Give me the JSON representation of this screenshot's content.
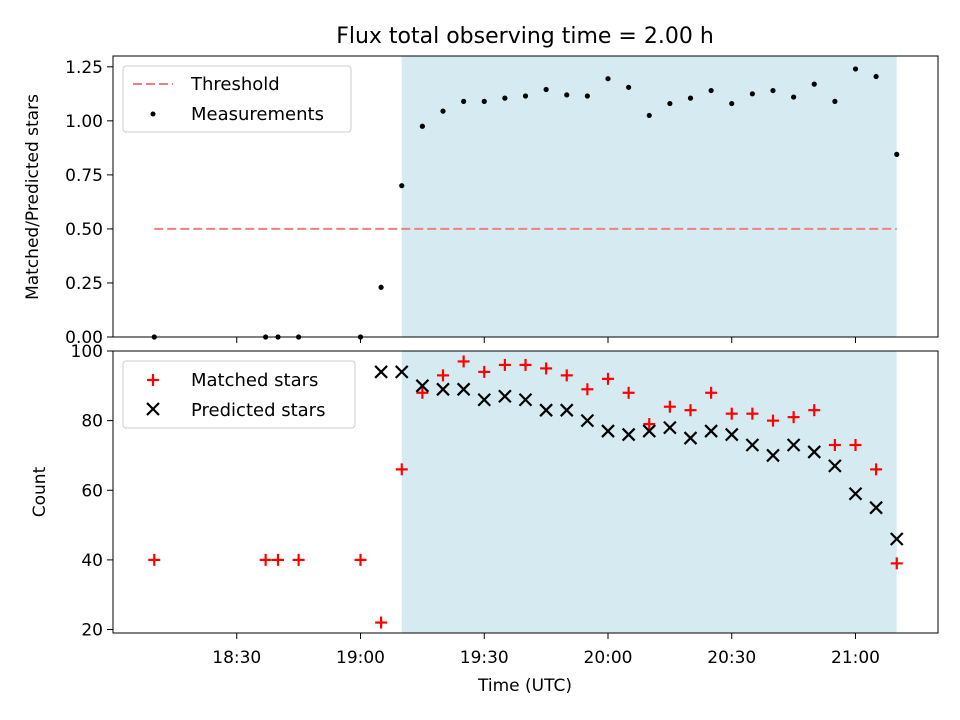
{
  "chart_data": [
    {
      "type": "scatter",
      "title": "Flux total observing time = 2.00 h",
      "ylabel": "Matched/Predicted stars",
      "xlabel": "",
      "xlim": [
        "18:00",
        "21:20"
      ],
      "ylim": [
        0,
        1.3
      ],
      "yticks": [
        "0.00",
        "0.25",
        "0.50",
        "0.75",
        "1.00",
        "1.25"
      ],
      "legend_position": "upper-left",
      "shaded_span": [
        "19:10",
        "21:10"
      ],
      "shade_color": "#d3eaf0",
      "threshold": {
        "name": "Threshold",
        "value": 0.5,
        "x_range": [
          "18:10",
          "21:10"
        ],
        "color": "#f08080",
        "style": "dashed"
      },
      "series": [
        {
          "name": "Measurements",
          "marker": "dot",
          "color": "#000000",
          "x": [
            "18:10",
            "18:37",
            "18:40",
            "18:45",
            "19:00",
            "19:05",
            "19:10",
            "19:15",
            "19:20",
            "19:25",
            "19:30",
            "19:35",
            "19:40",
            "19:45",
            "19:50",
            "19:55",
            "20:00",
            "20:05",
            "20:10",
            "20:15",
            "20:20",
            "20:25",
            "20:30",
            "20:35",
            "20:40",
            "20:45",
            "20:50",
            "20:55",
            "21:00",
            "21:05",
            "21:10"
          ],
          "values": [
            0.0,
            0.0,
            0.0,
            0.0,
            0.0,
            0.23,
            0.7,
            0.975,
            1.045,
            1.09,
            1.09,
            1.105,
            1.115,
            1.145,
            1.12,
            1.115,
            1.195,
            1.155,
            1.025,
            1.08,
            1.105,
            1.14,
            1.08,
            1.125,
            1.14,
            1.11,
            1.17,
            1.09,
            1.24,
            1.205,
            0.845
          ]
        }
      ]
    },
    {
      "type": "scatter",
      "title": "",
      "xlabel": "Time (UTC)",
      "ylabel": "Count",
      "xlim": [
        "18:00",
        "21:20"
      ],
      "ylim": [
        19,
        100
      ],
      "xticks": [
        "18:30",
        "19:00",
        "19:30",
        "20:00",
        "20:30",
        "21:00"
      ],
      "yticks": [
        "20",
        "40",
        "60",
        "80",
        "100"
      ],
      "legend_position": "upper-left",
      "shaded_span": [
        "19:10",
        "21:10"
      ],
      "series": [
        {
          "name": "Matched stars",
          "marker": "plus",
          "color": "#ff0000",
          "x": [
            "18:10",
            "18:37",
            "18:40",
            "18:45",
            "19:00",
            "19:05",
            "19:10",
            "19:15",
            "19:20",
            "19:25",
            "19:30",
            "19:35",
            "19:40",
            "19:45",
            "19:50",
            "19:55",
            "20:00",
            "20:05",
            "20:10",
            "20:15",
            "20:20",
            "20:25",
            "20:30",
            "20:35",
            "20:40",
            "20:45",
            "20:50",
            "20:55",
            "21:00",
            "21:05",
            "21:10"
          ],
          "values": [
            40,
            40,
            40,
            40,
            40,
            22,
            66,
            88,
            93,
            97,
            94,
            96,
            96,
            95,
            93,
            89,
            92,
            88,
            79,
            84,
            83,
            88,
            82,
            82,
            80,
            81,
            83,
            73,
            73,
            66,
            39
          ]
        },
        {
          "name": "Predicted stars",
          "marker": "x",
          "color": "#000000",
          "x": [
            "19:05",
            "19:10",
            "19:15",
            "19:20",
            "19:25",
            "19:30",
            "19:35",
            "19:40",
            "19:45",
            "19:50",
            "19:55",
            "20:00",
            "20:05",
            "20:10",
            "20:15",
            "20:20",
            "20:25",
            "20:30",
            "20:35",
            "20:40",
            "20:45",
            "20:50",
            "20:55",
            "21:00",
            "21:05",
            "21:10"
          ],
          "values": [
            94,
            94,
            90,
            89,
            89,
            86,
            87,
            86,
            83,
            83,
            80,
            77,
            76,
            77,
            78,
            75,
            77,
            76,
            73,
            70,
            73,
            71,
            67,
            59,
            55,
            46
          ]
        }
      ]
    }
  ]
}
